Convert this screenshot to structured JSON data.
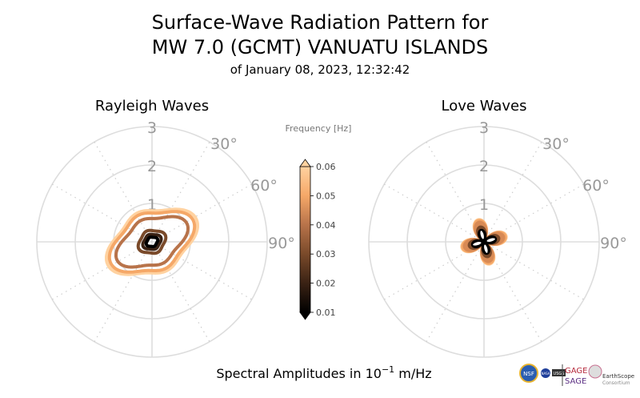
{
  "chart_data": {
    "type": "polar-line",
    "title_line1": "Surface-Wave Radiation Pattern for",
    "title_line2": "MW 7.0 (GCMT) VANUATU ISLANDS",
    "subtitle": "of January 08, 2023, 12:32:42",
    "xlabel_prefix": "Spectral Amplitudes in ",
    "xlabel_exp_base": "10",
    "xlabel_exp": "−1",
    "xlabel_unit": " m/Hz",
    "radial_ticks": [
      "1",
      "2",
      "3"
    ],
    "radial_max": 3,
    "angle_ticks": [
      "30°",
      "60°",
      "90°"
    ],
    "colorbar": {
      "title": "Frequency [Hz]",
      "ticks": [
        "0.01",
        "0.02",
        "0.03",
        "0.04",
        "0.05",
        "0.06"
      ],
      "range": [
        0.01,
        0.06
      ]
    },
    "panels": [
      {
        "title": "Rayleigh Waves",
        "shape": "ellipse",
        "orientation_deg": 62,
        "series": [
          {
            "freq": 0.06,
            "major": 1.2,
            "minor": 0.78,
            "color": "#ffd2a0"
          },
          {
            "freq": 0.05,
            "major": 1.12,
            "minor": 0.72,
            "color": "#f5a868"
          },
          {
            "freq": 0.04,
            "major": 0.95,
            "minor": 0.58,
            "color": "#b8734a"
          },
          {
            "freq": 0.03,
            "major": 0.36,
            "minor": 0.29,
            "color": "#7a4a2a"
          },
          {
            "freq": 0.02,
            "major": 0.24,
            "minor": 0.19,
            "color": "#3a2214"
          },
          {
            "freq": 0.01,
            "major": 0.15,
            "minor": 0.12,
            "color": "#000000"
          }
        ]
      },
      {
        "title": "Love Waves",
        "shape": "four-lobe",
        "orientation_deg": -15,
        "series": [
          {
            "freq": 0.06,
            "amp": 0.62,
            "color": "#ffd2a0"
          },
          {
            "freq": 0.05,
            "amp": 0.6,
            "color": "#f5a868"
          },
          {
            "freq": 0.04,
            "amp": 0.55,
            "color": "#d88a55"
          },
          {
            "freq": 0.03,
            "amp": 0.42,
            "color": "#7a4a2a"
          },
          {
            "freq": 0.02,
            "amp": 0.33,
            "color": "#000000"
          },
          {
            "freq": 0.01,
            "amp": 0.25,
            "color": "#000000"
          }
        ]
      }
    ]
  },
  "logos": {
    "nsf": "NSF",
    "nasa": "NASA",
    "usgs": "USGS",
    "gage": "GAGE",
    "sage": "SAGE",
    "earthscope": "EarthScope",
    "consortium": "Consortium"
  }
}
